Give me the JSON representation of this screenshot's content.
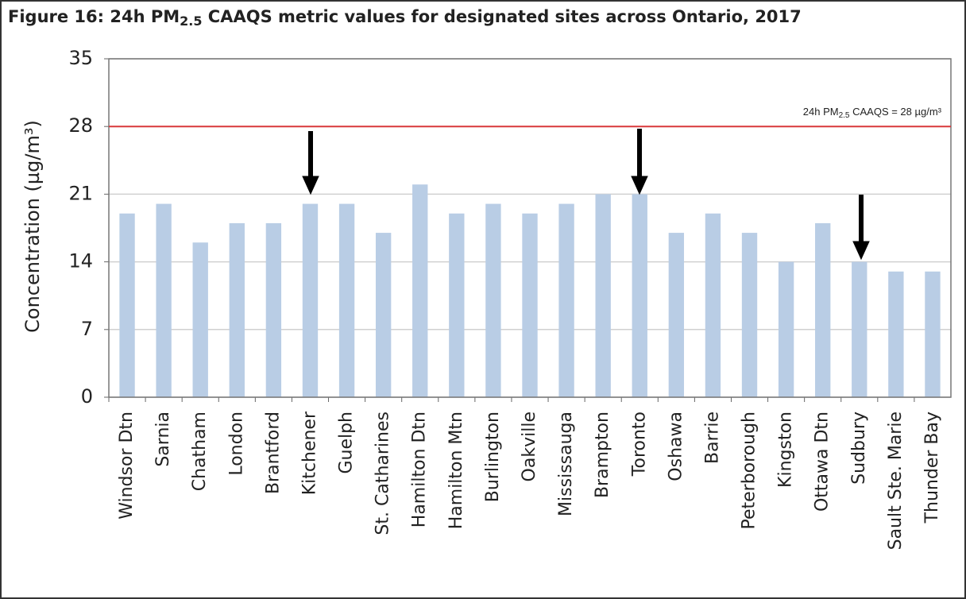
{
  "chart_data": {
    "type": "bar",
    "title": [
      "Figure 16: 24h PM",
      "2.5",
      " CAAQS metric values for designated sites across Ontario, 2017"
    ],
    "y_label": "Concentration (µg/m³)",
    "categories": [
      "Windsor Dtn",
      "Sarnia",
      "Chatham",
      "London",
      "Brantford",
      "Kitchener",
      "Guelph",
      "St. Catharines",
      "Hamilton Dtn",
      "Hamilton Mtn",
      "Burlington",
      "Oakville",
      "Mississauga",
      "Brampton",
      "Toronto",
      "Oshawa",
      "Barrie",
      "Peterborough",
      "Kingston",
      "Ottawa Dtn",
      "Sudbury",
      "Sault Ste. Marie",
      "Thunder Bay"
    ],
    "values": [
      19,
      20,
      16,
      18,
      18,
      20,
      20,
      17,
      22,
      19,
      20,
      19,
      20,
      21,
      21,
      17,
      19,
      17,
      14,
      18,
      14,
      13,
      13
    ],
    "color": "#b9cde5",
    "ylim": [
      0,
      35
    ],
    "yticks": [
      0,
      7,
      14,
      21,
      28,
      35
    ],
    "grid": true,
    "reference_line": {
      "value": 28,
      "color": "#d9393b",
      "label": [
        "24h PM",
        "2.5",
        " CAAQS = 28 µg/m³"
      ]
    }
  }
}
